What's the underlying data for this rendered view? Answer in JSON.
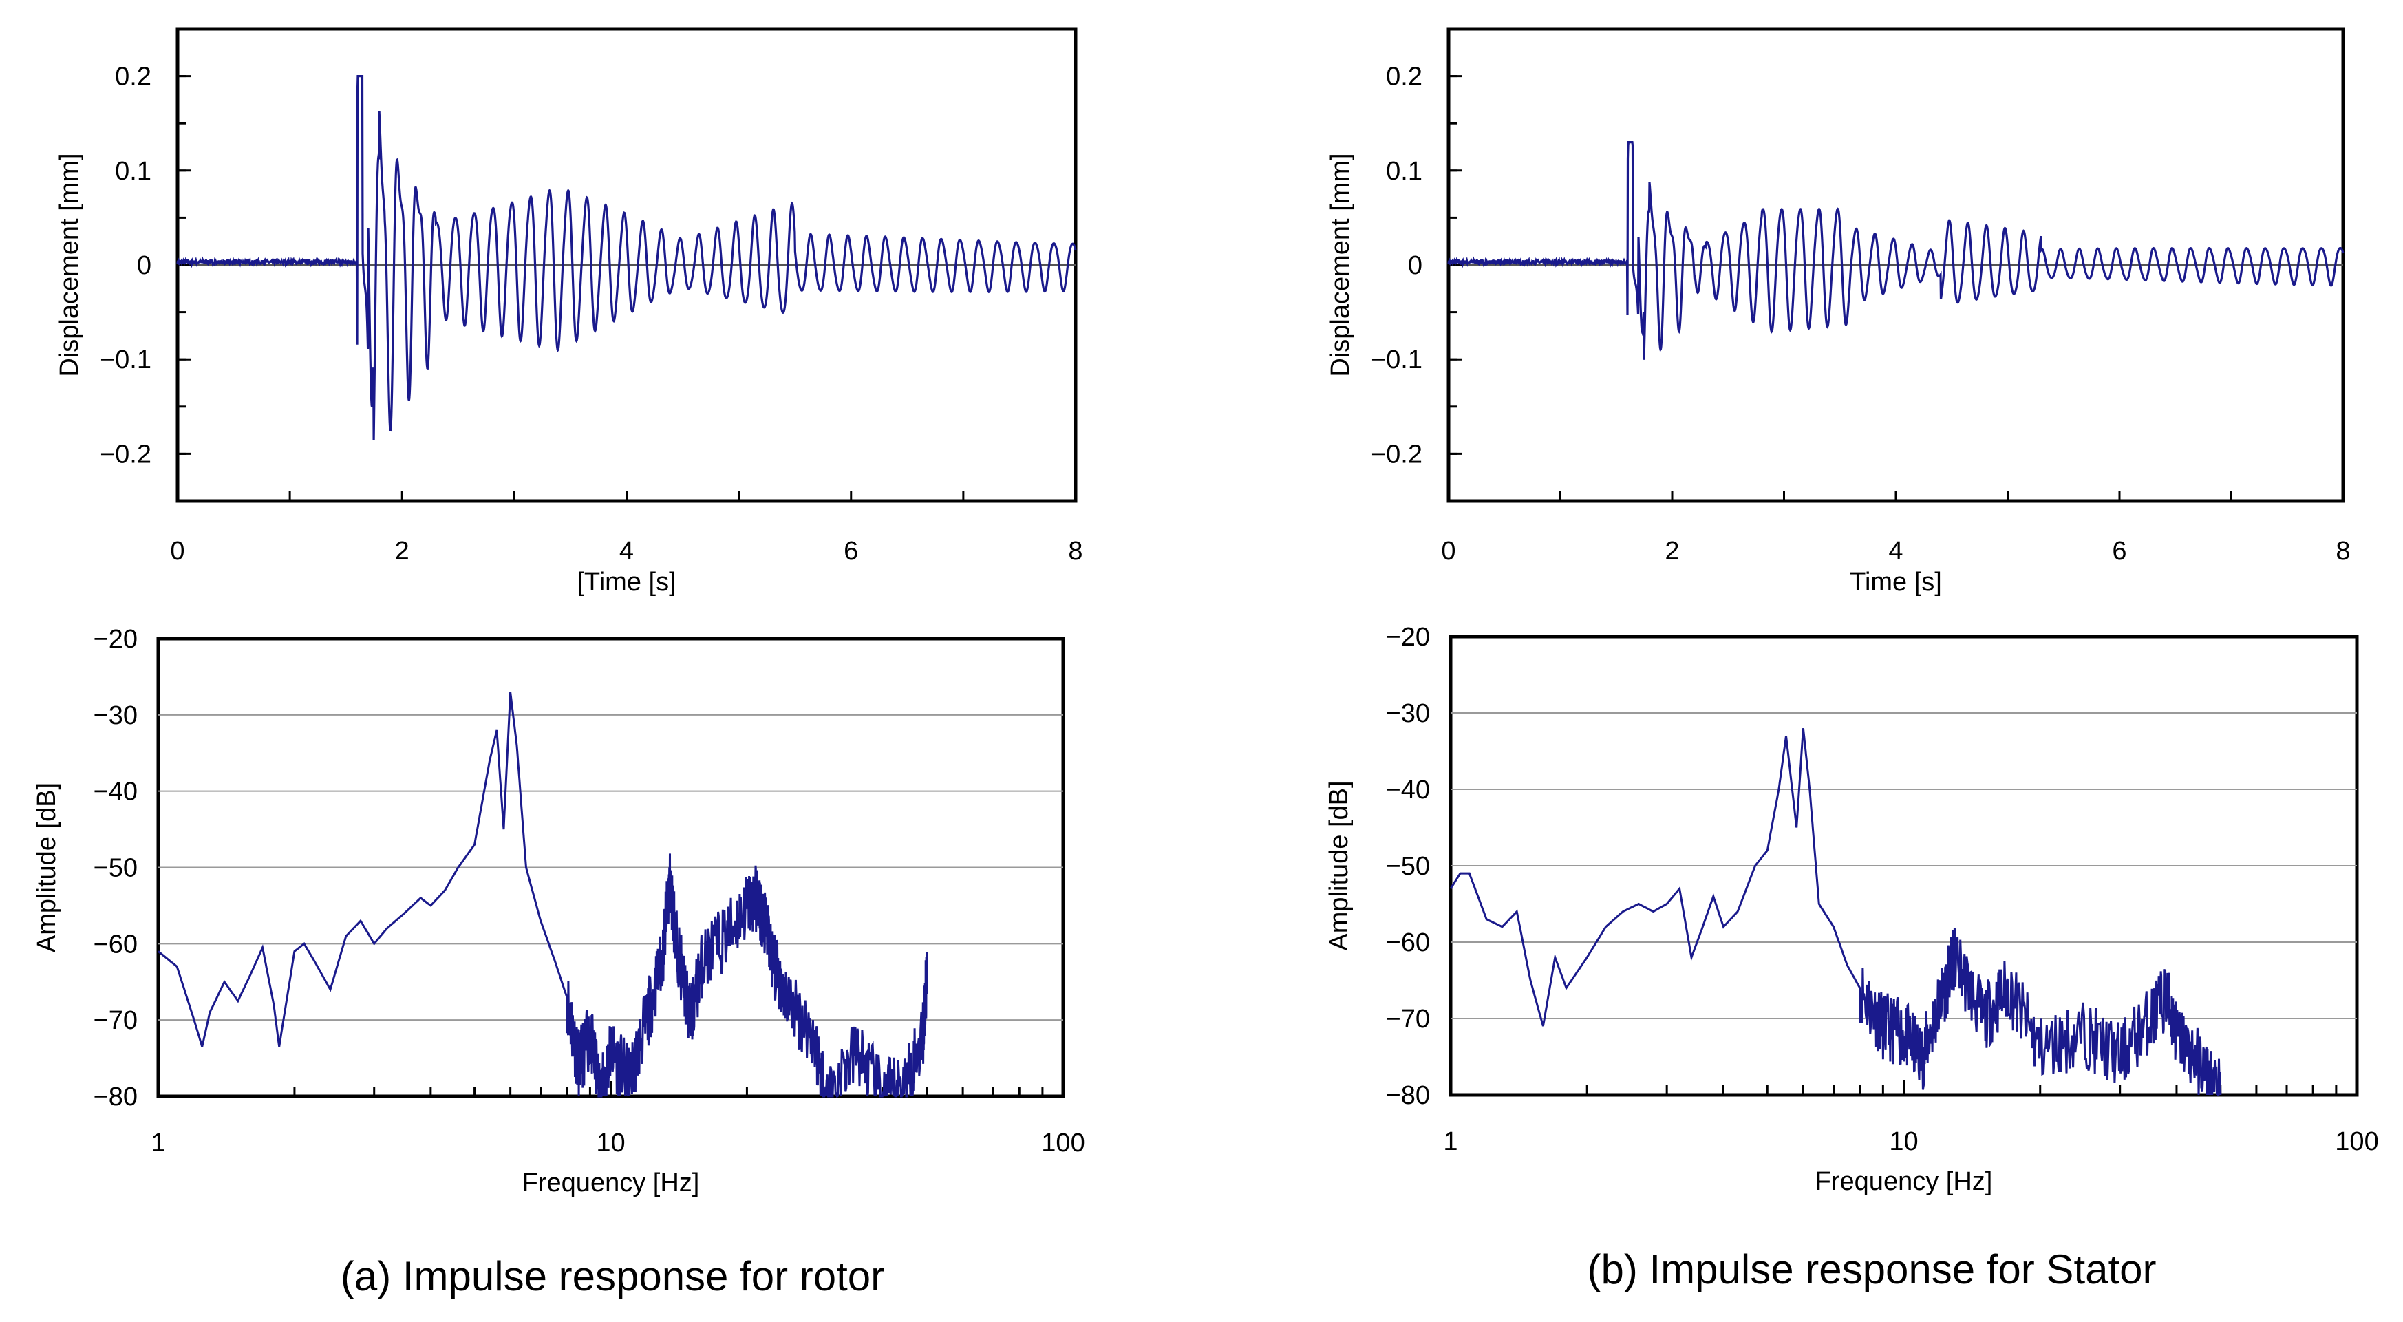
{
  "figure": {
    "caption_a": "(a) Impulse response for rotor",
    "caption_b": "(b) Impulse response for Stator"
  },
  "colors": {
    "trace": "#1a1a8c",
    "grid": "#9a9a9a",
    "axis": "#000000",
    "background": "#ffffff"
  },
  "chart_data": [
    {
      "id": "rotor-time",
      "type": "line",
      "title": "",
      "xlabel": "[Time [s]",
      "ylabel": "Displacement [mm]",
      "xlim": [
        0,
        8
      ],
      "ylim": [
        -0.25,
        0.25
      ],
      "xticks": [
        0,
        2,
        4,
        6,
        8
      ],
      "yticks": [
        0.2,
        0.1,
        0,
        -0.1,
        -0.2
      ],
      "ytick_labels": [
        "0.2",
        "0.1",
        "0",
        "−0.1",
        "−0.2"
      ],
      "grid": false,
      "zero_line": true,
      "signal": {
        "impulse_t": 1.6,
        "baseline": 0.003,
        "peak_max": 0.2,
        "peak_min": -0.2,
        "segments": [
          {
            "t0": 1.6,
            "t1": 2.3,
            "freq": 6.0,
            "amp0": 0.18,
            "amp1": 0.07
          },
          {
            "t0": 2.3,
            "t1": 3.4,
            "freq": 6.0,
            "amp0": 0.05,
            "amp1": 0.085
          },
          {
            "t0": 3.4,
            "t1": 4.5,
            "freq": 6.0,
            "amp0": 0.085,
            "amp1": 0.025
          },
          {
            "t0": 4.5,
            "t1": 5.5,
            "freq": 6.0,
            "amp0": 0.025,
            "amp1": 0.06
          },
          {
            "t0": 5.5,
            "t1": 8.0,
            "freq": 6.0,
            "amp0": 0.03,
            "amp1": 0.025
          }
        ]
      }
    },
    {
      "id": "rotor-spectrum",
      "type": "line",
      "title": "",
      "xlabel": "Frequency [Hz]",
      "ylabel": "Amplitude [dB]",
      "xscale": "log",
      "xlim": [
        1,
        100
      ],
      "ylim": [
        -80,
        -20
      ],
      "xticks": [
        1,
        10,
        100
      ],
      "yticks": [
        -20,
        -30,
        -40,
        -50,
        -60,
        -70,
        -80
      ],
      "grid": true,
      "series": [
        {
          "name": "rotor",
          "x": [
            1.0,
            1.1,
            1.2,
            1.25,
            1.3,
            1.4,
            1.5,
            1.6,
            1.7,
            1.8,
            1.85,
            2.0,
            2.1,
            2.2,
            2.4,
            2.6,
            2.8,
            3.0,
            3.2,
            3.5,
            3.8,
            4.0,
            4.3,
            4.6,
            5.0,
            5.4,
            5.6,
            5.8,
            6.0,
            6.2,
            6.5,
            7.0,
            7.5,
            8.0,
            8.5,
            9.0,
            9.5,
            10.0,
            11.0,
            12.0,
            13.0,
            13.5,
            14.0,
            15.0,
            16.0,
            18.0,
            20.0,
            21.0,
            22.0,
            23.0,
            25.0,
            28.0,
            30.0,
            35.0,
            40.0,
            45.0,
            49.0,
            50.0
          ],
          "y": [
            -61,
            -63,
            -70,
            -73.5,
            -69,
            -65,
            -67.5,
            -64,
            -60.5,
            -68,
            -73.5,
            -61,
            -60,
            -62,
            -66,
            -59,
            -57,
            -60,
            -58,
            -56,
            -54,
            -55,
            -53,
            -50,
            -47,
            -36,
            -32,
            -45,
            -27,
            -34,
            -50,
            -57,
            -62,
            -67,
            -76,
            -72,
            -80,
            -74,
            -78,
            -70,
            -62,
            -52,
            -60,
            -70,
            -62,
            -59,
            -55,
            -54,
            -58,
            -63,
            -68,
            -72,
            -80,
            -74,
            -80,
            -78,
            -72,
            -64
          ]
        }
      ]
    },
    {
      "id": "stator-time",
      "type": "line",
      "title": "",
      "xlabel": "Time [s]",
      "ylabel": "Displacement [mm]",
      "xlim": [
        0,
        8
      ],
      "ylim": [
        -0.25,
        0.25
      ],
      "xticks": [
        0,
        2,
        4,
        6,
        8
      ],
      "yticks": [
        0.2,
        0.1,
        0,
        -0.1,
        -0.2
      ],
      "ytick_labels": [
        "0.2",
        "0.1",
        "0",
        "−0.1",
        "−0.2"
      ],
      "grid": false,
      "zero_line": true,
      "signal": {
        "impulse_t": 1.6,
        "baseline": 0.003,
        "peak_max": 0.13,
        "peak_min": -0.12,
        "segments": [
          {
            "t0": 1.6,
            "t1": 2.2,
            "freq": 6.0,
            "amp0": 0.095,
            "amp1": 0.04
          },
          {
            "t0": 2.2,
            "t1": 2.8,
            "freq": 6.0,
            "amp0": 0.02,
            "amp1": 0.06
          },
          {
            "t0": 2.8,
            "t1": 3.6,
            "freq": 6.0,
            "amp0": 0.065,
            "amp1": 0.06
          },
          {
            "t0": 3.6,
            "t1": 4.4,
            "freq": 6.0,
            "amp0": 0.04,
            "amp1": 0.012
          },
          {
            "t0": 4.4,
            "t1": 5.3,
            "freq": 6.0,
            "amp0": 0.045,
            "amp1": 0.03
          },
          {
            "t0": 5.3,
            "t1": 8.0,
            "freq": 6.0,
            "amp0": 0.015,
            "amp1": 0.02
          }
        ]
      }
    },
    {
      "id": "stator-spectrum",
      "type": "line",
      "title": "",
      "xlabel": "Frequency [Hz]",
      "ylabel": "Amplitude [dB]",
      "xscale": "log",
      "xlim": [
        1,
        100
      ],
      "ylim": [
        -80,
        -20
      ],
      "xticks": [
        1,
        10,
        100
      ],
      "yticks": [
        -20,
        -30,
        -40,
        -50,
        -60,
        -70,
        -80
      ],
      "grid": true,
      "series": [
        {
          "name": "stator",
          "x": [
            1.0,
            1.05,
            1.1,
            1.2,
            1.3,
            1.4,
            1.5,
            1.6,
            1.7,
            1.8,
            2.0,
            2.2,
            2.4,
            2.6,
            2.8,
            3.0,
            3.2,
            3.4,
            3.6,
            3.8,
            4.0,
            4.3,
            4.7,
            5.0,
            5.3,
            5.5,
            5.8,
            6.0,
            6.2,
            6.5,
            7.0,
            7.5,
            8.0,
            9.0,
            10.0,
            11.0,
            12.0,
            13.0,
            15.0,
            17.0,
            20.0,
            25.0,
            30.0,
            35.0,
            38.0,
            40.0,
            45.0,
            50.0
          ],
          "y": [
            -53,
            -51,
            -51,
            -57,
            -58,
            -56,
            -65,
            -71,
            -62,
            -66,
            -62,
            -58,
            -56,
            -55,
            -56,
            -55,
            -53,
            -62,
            -58,
            -54,
            -58,
            -56,
            -50,
            -48,
            -40,
            -33,
            -45,
            -32,
            -40,
            -55,
            -58,
            -63,
            -66,
            -71,
            -72,
            -75,
            -68,
            -62,
            -70,
            -66,
            -74,
            -72,
            -75,
            -70,
            -67,
            -72,
            -76,
            -80
          ]
        }
      ]
    }
  ]
}
